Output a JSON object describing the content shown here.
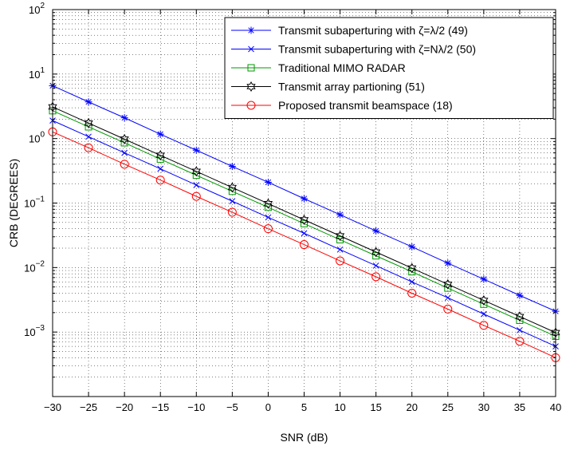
{
  "chart_data": {
    "type": "line",
    "title": "",
    "xlabel": "SNR (dB)",
    "ylabel": "CRB (DEGREES)",
    "xlim": [
      -30,
      40
    ],
    "ylim": [
      0.0001,
      100
    ],
    "yscale": "log",
    "grid": true,
    "legend_position": "top-right",
    "x_ticks": [
      "−30",
      "−25",
      "−20",
      "−15",
      "−10",
      "−5",
      "0",
      "5",
      "10",
      "15",
      "20",
      "25",
      "30",
      "35",
      "40"
    ],
    "y_ticks": [
      {
        "base": "10",
        "exp": "−3"
      },
      {
        "base": "10",
        "exp": "−2"
      },
      {
        "base": "10",
        "exp": "−1"
      },
      {
        "base": "10",
        "exp": "0"
      },
      {
        "base": "10",
        "exp": "1"
      },
      {
        "base": "10",
        "exp": "2"
      }
    ],
    "x": [
      -30,
      -25,
      -20,
      -15,
      -10,
      -5,
      0,
      5,
      10,
      15,
      20,
      25,
      30,
      35,
      40
    ],
    "series": [
      {
        "name": "Transmit subaperturing with ζ=λ/2 (49)",
        "color": "#0000ff",
        "marker": "asterisk",
        "values": [
          6.6,
          3.7,
          2.1,
          1.17,
          0.66,
          0.37,
          0.21,
          0.117,
          0.066,
          0.037,
          0.021,
          0.0117,
          0.0066,
          0.0037,
          0.0021
        ]
      },
      {
        "name": "Transmit subaperturing with ζ=Nλ/2 (50)",
        "color": "#0000ff",
        "marker": "x",
        "values": [
          1.9,
          1.07,
          0.6,
          0.34,
          0.19,
          0.107,
          0.06,
          0.034,
          0.019,
          0.0107,
          0.006,
          0.0034,
          0.0019,
          0.00107,
          0.0006
        ]
      },
      {
        "name": "Traditional MIMO RADAR",
        "color": "#009900",
        "marker": "square",
        "values": [
          2.7,
          1.52,
          0.86,
          0.48,
          0.27,
          0.152,
          0.086,
          0.048,
          0.027,
          0.0152,
          0.0086,
          0.0048,
          0.0027,
          0.00152,
          0.00086
        ]
      },
      {
        "name": "Transmit array partioning (51)",
        "color": "#000000",
        "marker": "hexagram",
        "values": [
          3.1,
          1.74,
          0.98,
          0.55,
          0.31,
          0.174,
          0.098,
          0.055,
          0.031,
          0.0174,
          0.0098,
          0.0055,
          0.0031,
          0.00174,
          0.00098
        ]
      },
      {
        "name": "Proposed transmit beamspace (18)",
        "color": "#ff0000",
        "marker": "circle",
        "values": [
          1.27,
          0.72,
          0.4,
          0.227,
          0.127,
          0.072,
          0.04,
          0.0227,
          0.0127,
          0.0072,
          0.004,
          0.00227,
          0.00127,
          0.00072,
          0.0004
        ]
      }
    ]
  }
}
